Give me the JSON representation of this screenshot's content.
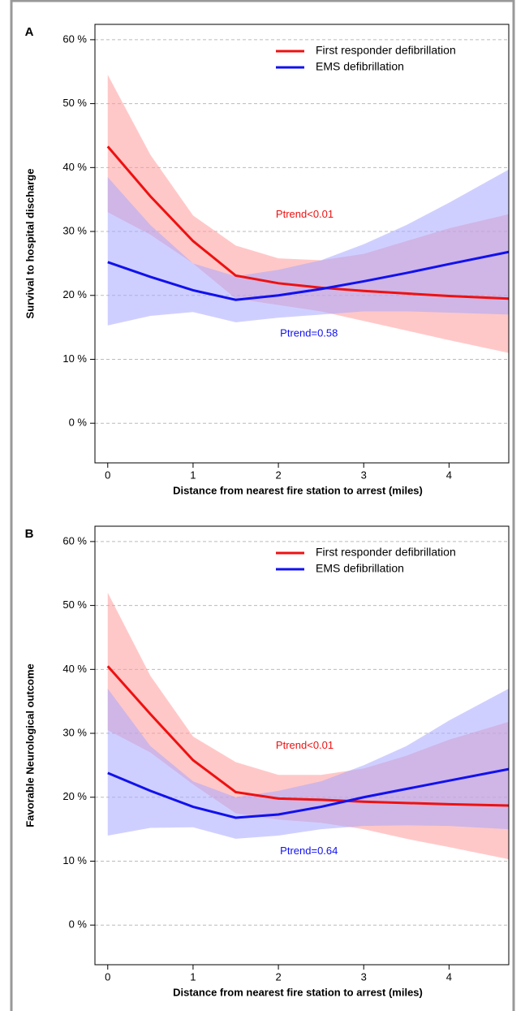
{
  "chart_data": [
    {
      "type": "line",
      "panel_label": "A",
      "ylabel": "Survival to hospital discharge",
      "xlabel": "Distance from nearest fire station to arrest (miles)",
      "x": [
        0,
        0.5,
        1,
        1.5,
        2,
        2.5,
        3,
        3.5,
        4,
        4.7
      ],
      "series": [
        {
          "name": "First responder defibrillation",
          "color": "#ee1111",
          "band_color": "#ff9a9a",
          "values": [
            43.3,
            35.5,
            28.5,
            23.1,
            21.9,
            21.2,
            20.7,
            20.3,
            19.9,
            19.5
          ],
          "lower": [
            33,
            29.5,
            25,
            19.5,
            18.5,
            17.5,
            16,
            14.5,
            13,
            11
          ],
          "upper": [
            54.5,
            42,
            32.5,
            27.8,
            25.8,
            25.5,
            26.5,
            28.5,
            30.5,
            32.7
          ]
        },
        {
          "name": "EMS defibrillation",
          "color": "#1111ee",
          "band_color": "#a8a8ff",
          "values": [
            25.2,
            22.9,
            20.8,
            19.3,
            20,
            21,
            22.2,
            23.5,
            24.9,
            26.8
          ],
          "lower": [
            15.3,
            16.8,
            17.4,
            15.8,
            16.5,
            17,
            17.5,
            17.5,
            17.3,
            17
          ],
          "upper": [
            38.5,
            31,
            25,
            23,
            24,
            25.5,
            28,
            31,
            34.5,
            39.7
          ]
        }
      ],
      "annotations": [
        {
          "text": "Ptrend<0.01",
          "color": "#ee1111"
        },
        {
          "text": "Ptrend=0.58",
          "color": "#1111ee"
        }
      ],
      "xlim": [
        -0.15,
        4.7
      ],
      "ylim": [
        -6.2,
        62.4
      ],
      "xticks": [
        0,
        1,
        2,
        3,
        4
      ],
      "yticks": [
        {
          "value": 0,
          "label": "0 %"
        },
        {
          "value": 10,
          "label": "10 %"
        },
        {
          "value": 20,
          "label": "20 %"
        },
        {
          "value": 30,
          "label": "30 %"
        },
        {
          "value": 40,
          "label": "40 %"
        },
        {
          "value": 50,
          "label": "50 %"
        },
        {
          "value": 60,
          "label": "60 %"
        }
      ],
      "grid": true,
      "legend": "top-right"
    },
    {
      "type": "line",
      "panel_label": "B",
      "ylabel": "Favorable Neurological outcome",
      "xlabel": "Distance from nearest fire station to arrest (miles)",
      "x": [
        0,
        0.5,
        1,
        1.5,
        2,
        2.5,
        3,
        3.5,
        4,
        4.7
      ],
      "series": [
        {
          "name": "First responder defibrillation",
          "color": "#ee1111",
          "band_color": "#ff9a9a",
          "values": [
            40.5,
            33,
            25.8,
            20.8,
            19.8,
            19.6,
            19.3,
            19.1,
            18.9,
            18.7
          ],
          "lower": [
            30.5,
            27,
            22,
            17.5,
            16.5,
            16,
            15,
            13.5,
            12.2,
            10.3
          ],
          "upper": [
            52,
            39,
            29.5,
            25.5,
            23.5,
            23.5,
            24.5,
            26.5,
            29,
            31.8
          ]
        },
        {
          "name": "EMS defibrillation",
          "color": "#1111ee",
          "band_color": "#a8a8ff",
          "values": [
            23.8,
            21,
            18.5,
            16.8,
            17.3,
            18.5,
            20,
            21.3,
            22.6,
            24.4
          ],
          "lower": [
            14,
            15.2,
            15.3,
            13.5,
            14,
            15,
            15.5,
            15.6,
            15.5,
            15
          ],
          "upper": [
            37,
            28,
            22.5,
            20,
            21,
            22.5,
            25,
            28,
            32,
            37
          ]
        }
      ],
      "annotations": [
        {
          "text": "Ptrend<0.01",
          "color": "#ee1111"
        },
        {
          "text": "Ptrend=0.64",
          "color": "#1111ee"
        }
      ],
      "xlim": [
        -0.15,
        4.7
      ],
      "ylim": [
        -6.2,
        62.4
      ],
      "xticks": [
        0,
        1,
        2,
        3,
        4
      ],
      "yticks": [
        {
          "value": 0,
          "label": "0 %"
        },
        {
          "value": 10,
          "label": "10 %"
        },
        {
          "value": 20,
          "label": "20 %"
        },
        {
          "value": 30,
          "label": "30 %"
        },
        {
          "value": 40,
          "label": "40 %"
        },
        {
          "value": 50,
          "label": "50 %"
        },
        {
          "value": 60,
          "label": "60 %"
        }
      ],
      "grid": true,
      "legend": "top-right"
    }
  ]
}
